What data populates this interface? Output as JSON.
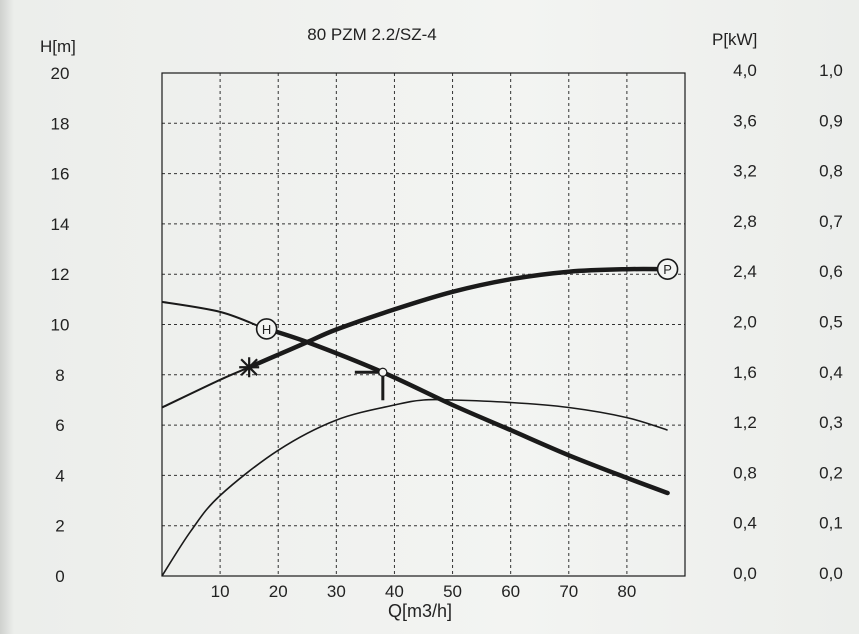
{
  "chart_data": {
    "type": "line",
    "title": "80 PZM 2.2/SZ-4",
    "xlabel": "Q[m3/h]",
    "ylabel_left": "H[m]",
    "ylabel_right": "P[kW]",
    "xlim": [
      0,
      90
    ],
    "ylim": [
      0,
      20
    ],
    "x_ticks": [
      "10",
      "20",
      "30",
      "40",
      "50",
      "60",
      "70",
      "80"
    ],
    "y_ticks": [
      "0",
      "2",
      "4",
      "6",
      "8",
      "10",
      "12",
      "14",
      "16",
      "18",
      "20"
    ],
    "p_ticks": [
      "0,0",
      "0,4",
      "0,8",
      "1,2",
      "1,6",
      "2,0",
      "2,4",
      "2,8",
      "3,2",
      "3,6",
      "4,0"
    ],
    "eff_ticks": [
      "0,0",
      "0,1",
      "0,2",
      "0,3",
      "0,4",
      "0,5",
      "0,6",
      "0,7",
      "0,8",
      "0,9",
      "1,0"
    ],
    "grid": true,
    "series": [
      {
        "name": "H",
        "axis": "H[m]",
        "x": [
          0,
          10,
          17,
          25,
          38,
          50,
          60,
          70,
          80,
          87
        ],
        "y": [
          10.9,
          10.5,
          9.9,
          9.3,
          8.1,
          6.8,
          5.8,
          4.8,
          3.9,
          3.3
        ]
      },
      {
        "name": "P",
        "axis": "P[kW]",
        "x": [
          0,
          10,
          15,
          20,
          25,
          30,
          40,
          50,
          60,
          70,
          80,
          87
        ],
        "y": [
          1.34,
          1.56,
          1.66,
          1.76,
          1.86,
          1.96,
          2.12,
          2.26,
          2.36,
          2.42,
          2.44,
          2.44
        ]
      },
      {
        "name": "",
        "axis": "efficiency",
        "x": [
          0,
          5,
          10,
          20,
          30,
          40,
          45,
          50,
          60,
          70,
          80,
          87
        ],
        "y": [
          0,
          0.09,
          0.16,
          0.25,
          0.31,
          0.34,
          0.35,
          0.35,
          0.345,
          0.335,
          0.315,
          0.29
        ]
      }
    ],
    "markers": [
      {
        "type": "H",
        "x": 18
      },
      {
        "type": "P",
        "x": 87
      }
    ]
  }
}
